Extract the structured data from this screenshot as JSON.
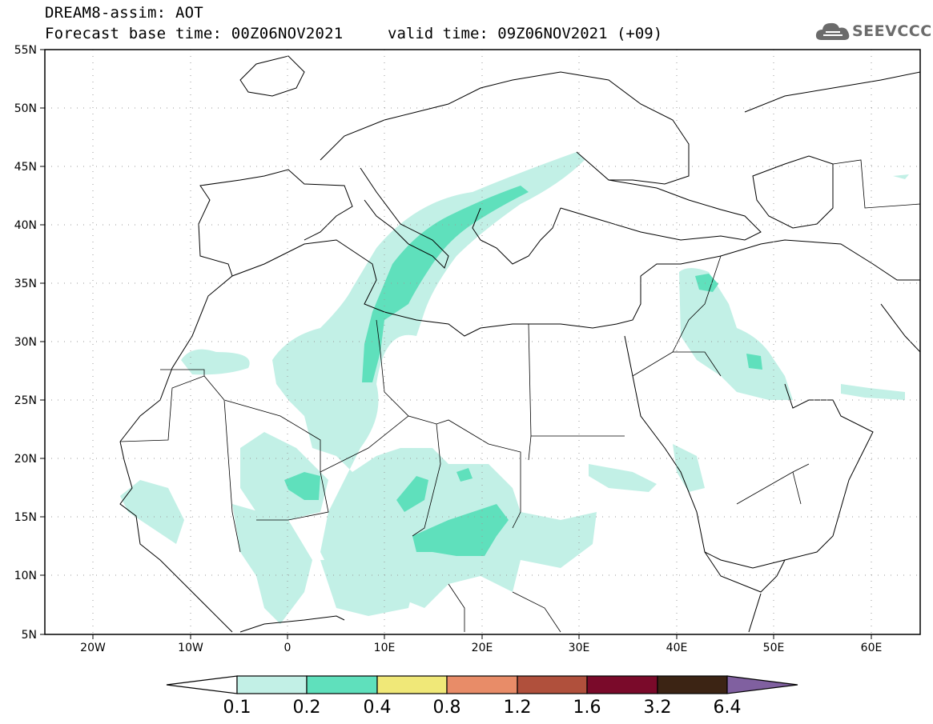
{
  "header": {
    "title": "DREAM8-assim: AOT",
    "base_time": "Forecast base time: 00Z06NOV2021",
    "valid_time": "valid time: 09Z06NOV2021 (+09)",
    "logo_text": "SEEVCCC"
  },
  "map": {
    "lon_range": [
      -25,
      65
    ],
    "lat_range": [
      5,
      55
    ],
    "lat_labels": [
      "55N",
      "50N",
      "45N",
      "40N",
      "35N",
      "30N",
      "25N",
      "20N",
      "15N",
      "10N",
      "5N"
    ],
    "lon_labels": [
      "20W",
      "10W",
      "0",
      "10E",
      "20E",
      "30E",
      "40E",
      "50E",
      "60E"
    ],
    "plume_colors": {
      "level_0.1": "#c2f0e6",
      "level_0.2": "#5fe0bc"
    }
  },
  "colorbar": {
    "labels": [
      "0.1",
      "0.2",
      "0.4",
      "0.8",
      "1.2",
      "1.6",
      "3.2",
      "6.4"
    ],
    "colors": [
      "#ffffff",
      "#c2f0e6",
      "#5fe0bc",
      "#f0e878",
      "#e88c68",
      "#b0503c",
      "#7a0a2a",
      "#3c2414",
      "#8060a0"
    ]
  }
}
